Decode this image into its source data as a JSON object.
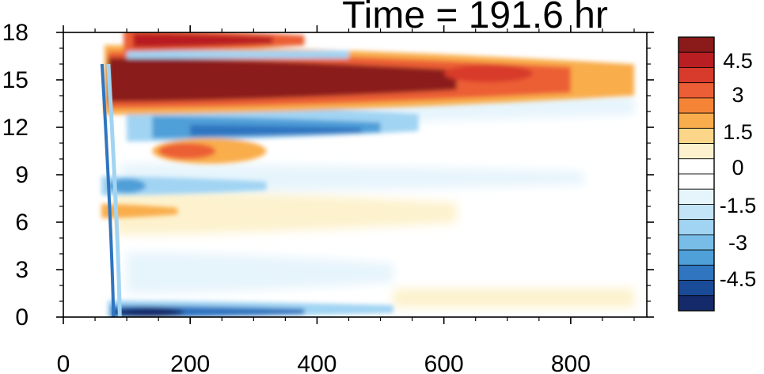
{
  "chart_data": {
    "type": "heatmap",
    "title": "Time = 191.6 hr",
    "xlabel": "",
    "ylabel": "",
    "xlim": [
      0,
      920
    ],
    "ylim": [
      0,
      18
    ],
    "x_ticks": [
      "0",
      "200",
      "400",
      "600",
      "800"
    ],
    "x_tick_values": [
      0,
      200,
      400,
      600,
      800
    ],
    "y_ticks": [
      "0",
      "3",
      "6",
      "9",
      "12",
      "15",
      "18"
    ],
    "y_tick_values": [
      0,
      3,
      6,
      9,
      12,
      15,
      18
    ],
    "colorbar": {
      "labels": [
        "4.5",
        "3",
        "1.5",
        "0",
        "-1.5",
        "-3",
        "-4.5"
      ],
      "label_values": [
        4.5,
        3,
        1.5,
        0,
        -1.5,
        -3,
        -4.5
      ],
      "levels": [
        5.25,
        4.5,
        3.75,
        3,
        2.25,
        1.5,
        0.75,
        0,
        -0.75,
        -1.5,
        -2.25,
        -3,
        -3.75,
        -4.5,
        -5.25
      ],
      "colors": [
        "#8b1a1a",
        "#b81e22",
        "#d83a2c",
        "#ec5e36",
        "#f58436",
        "#f9ad4c",
        "#fbd688",
        "#fdf2cd",
        "#ffffff",
        "#ffffff",
        "#e6f4fc",
        "#c3e3f6",
        "#a1d4f3",
        "#78bde8",
        "#4f9fd8",
        "#2f75c0",
        "#1a4b99",
        "#142a6b"
      ]
    },
    "features": [
      {
        "name": "strong-positive-band",
        "x_range": [
          60,
          900
        ],
        "y_center": 15.0,
        "peak": 5.5
      },
      {
        "name": "upper-red-band",
        "x_range": [
          100,
          360
        ],
        "y_center": 17.5,
        "peak": 5.0
      },
      {
        "name": "negative-band-12",
        "x_range": [
          100,
          560
        ],
        "y_center": 12.2,
        "peak": -4.0
      },
      {
        "name": "negative-band-16",
        "x_range": [
          100,
          450
        ],
        "y_center": 16.5,
        "peak": -2.0
      },
      {
        "name": "positive-blob-10",
        "x_range": [
          140,
          420
        ],
        "y_center": 10.5,
        "peak": 3.5
      },
      {
        "name": "negative-band-8",
        "x_range": [
          60,
          800
        ],
        "y_center": 8.3,
        "peak": -3.0
      },
      {
        "name": "positive-band-6",
        "x_range": [
          60,
          600
        ],
        "y_center": 6.5,
        "peak": 1.5
      },
      {
        "name": "surface-negative-band",
        "x_range": [
          70,
          500
        ],
        "y_center": 0.4,
        "peak": -5.5
      },
      {
        "name": "front-line",
        "x_range": [
          55,
          80
        ],
        "y_range": [
          0,
          16
        ],
        "peak": -4.0
      }
    ]
  }
}
